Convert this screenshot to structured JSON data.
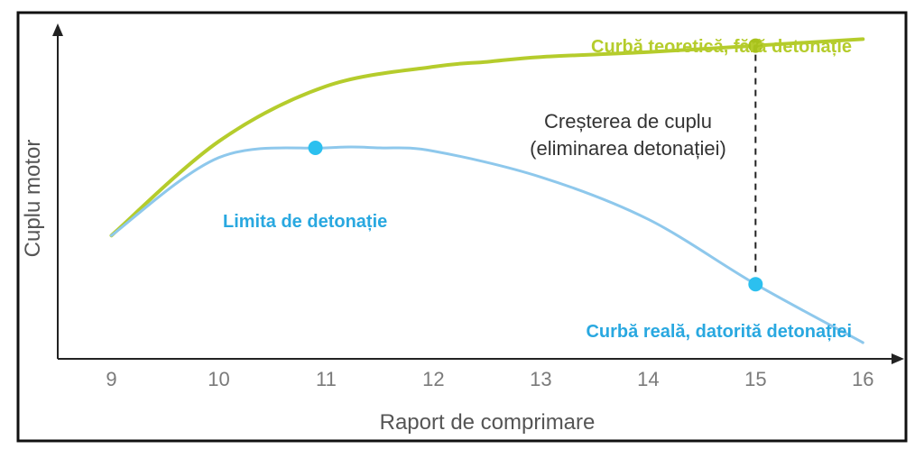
{
  "chart_data": {
    "type": "line",
    "xlabel": "Raport de comprimare",
    "ylabel": "Cuplu motor",
    "xlim": [
      8.5,
      16.3
    ],
    "ylim": [
      0,
      100
    ],
    "x_ticks": [
      9,
      10,
      11,
      12,
      13,
      14,
      15,
      16
    ],
    "grid": false,
    "series": [
      {
        "name": "Curbă teoretică, fără detonație",
        "color": "#b5cc2c",
        "x": [
          9,
          10,
          11,
          12,
          12.5,
          13,
          14,
          15,
          16
        ],
        "y": [
          38,
          67,
          84,
          90,
          91.5,
          93,
          94.5,
          96.5,
          98.5
        ]
      },
      {
        "name": "Curbă reală, datorită detonației",
        "color": "#8ec8ec",
        "x": [
          9,
          10,
          11,
          11.5,
          12,
          13,
          14,
          15,
          16
        ],
        "y": [
          38,
          62,
          65,
          65,
          64,
          56,
          43,
          23,
          5
        ]
      }
    ],
    "markers": [
      {
        "series": 0,
        "x": 15,
        "y": 96.5,
        "color": "#a8c21c"
      },
      {
        "series": 1,
        "x": 10.9,
        "y": 65,
        "color": "#2cc0ef"
      },
      {
        "series": 1,
        "x": 15,
        "y": 23,
        "color": "#2cc0ef"
      }
    ],
    "annotations": {
      "theoretical_label": "Curbă teoretică, fără detonație",
      "real_label": "Curbă reală, datorită detonației",
      "knock_limit": "Limita de detonație",
      "gain_line1": "Creșterea de cuplu",
      "gain_line2": "(eliminarea detonației)"
    },
    "colors": {
      "theoretical_text": "#b5cc2c",
      "blue_text": "#29a8e0",
      "dashed": "#222222",
      "axis": "#222222",
      "frame": "#111111"
    }
  }
}
